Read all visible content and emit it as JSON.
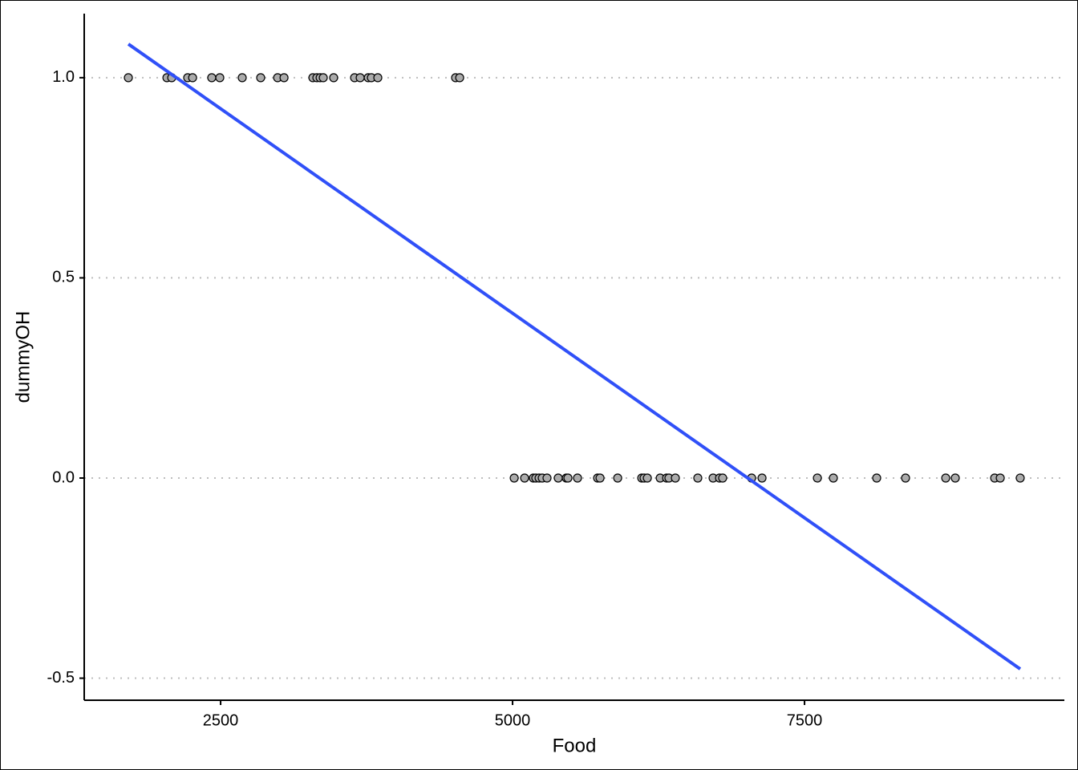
{
  "chart_data": {
    "type": "scatter",
    "x_label": "Food",
    "y_label": "dummyOH",
    "points": {
      "color": "#ababab",
      "x": [
        1710,
        2040,
        2081,
        2218,
        2260,
        2424,
        2493,
        2685,
        2843,
        2988,
        3043,
        3290,
        3324,
        3352,
        3379,
        3468,
        3647,
        3695,
        3764,
        3791,
        3846,
        4512,
        4547,
        5014,
        5103,
        5178,
        5199,
        5227,
        5254,
        5295,
        5391,
        5460,
        5474,
        5556,
        5728,
        5749,
        5900,
        6106,
        6126,
        6154,
        6264,
        6319,
        6339,
        6394,
        6586,
        6717,
        6772,
        6799,
        7047,
        7136,
        7610,
        7747,
        8118,
        8365,
        8709,
        8791,
        9128,
        9176,
        9347
      ],
      "values": [
        1,
        1,
        1,
        1,
        1,
        1,
        1,
        1,
        1,
        1,
        1,
        1,
        1,
        1,
        1,
        1,
        1,
        1,
        1,
        1,
        1,
        1,
        1,
        0,
        0,
        0,
        0,
        0,
        0,
        0,
        0,
        0,
        0,
        0,
        0,
        0,
        0,
        0,
        0,
        0,
        0,
        0,
        0,
        0,
        0,
        0,
        0,
        0,
        0,
        0,
        0,
        0,
        0,
        0,
        0,
        0,
        0,
        0,
        0
      ]
    },
    "fit_line": {
      "color": "#3050f8",
      "x": [
        1710,
        9347
      ],
      "values": [
        1.084,
        -0.477
      ]
    },
    "xlim": [
      1332,
      9725
    ],
    "ylim": [
      -0.555,
      1.16
    ],
    "xticks": [
      2500,
      5000,
      7500
    ],
    "yticks": [
      {
        "value": -0.5,
        "label": "-0.5"
      },
      {
        "value": 0,
        "label": "0.0"
      },
      {
        "value": 0.5,
        "label": "0.5"
      },
      {
        "value": 1,
        "label": "1.0"
      }
    ],
    "grid": "y"
  }
}
